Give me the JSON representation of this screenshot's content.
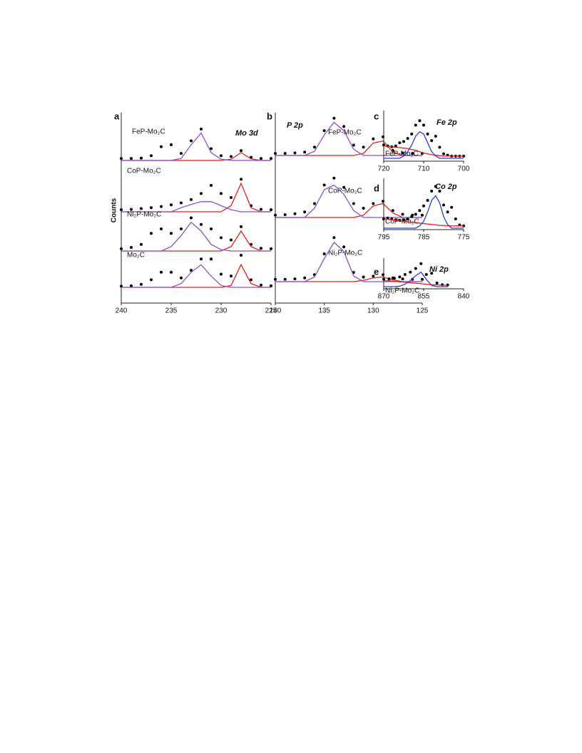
{
  "chart_data": [
    {
      "type": "line",
      "label": "a",
      "title": "Mo 3d",
      "ylabel": "Counts",
      "xlim": [
        240,
        225
      ],
      "ylim": [
        0,
        1
      ],
      "x": [
        240,
        239,
        238,
        237,
        236,
        235,
        234,
        233,
        232,
        231,
        230,
        229,
        228,
        227,
        226,
        225
      ],
      "series": [
        {
          "name": "FeP-Mo₂C",
          "color": "#000000",
          "values": [
            0.05,
            0.05,
            0.06,
            0.12,
            0.35,
            0.4,
            0.18,
            0.5,
            0.8,
            0.3,
            0.12,
            0.1,
            0.25,
            0.08,
            0.05,
            0.05
          ]
        },
        {
          "color": "#e0201b",
          "values": [
            0,
            0,
            0,
            0,
            0,
            0,
            0,
            0,
            0,
            0,
            0,
            0.03,
            0.2,
            0.04,
            0,
            0
          ]
        },
        {
          "color": "#8a4fcf",
          "values": [
            0,
            0,
            0,
            0,
            0,
            0,
            0.05,
            0.4,
            0.7,
            0.2,
            0.03,
            0,
            0,
            0,
            0,
            0
          ]
        }
      ]
    },
    {
      "type": "line",
      "xlim": [
        240,
        225
      ],
      "ylim": [
        0,
        1
      ],
      "x": [
        240,
        239,
        238,
        237,
        236,
        235,
        234,
        233,
        232,
        231,
        230,
        229,
        228,
        227,
        226,
        225
      ],
      "series": [
        {
          "name": "CoP-Mo₂C",
          "color": "#000000",
          "values": [
            0.05,
            0.06,
            0.08,
            0.1,
            0.13,
            0.17,
            0.22,
            0.3,
            0.45,
            0.65,
            0.45,
            0.35,
            0.8,
            0.15,
            0.06,
            0.05
          ]
        },
        {
          "color": "#e0201b",
          "values": [
            0,
            0,
            0,
            0,
            0,
            0,
            0,
            0,
            0,
            0,
            0,
            0.15,
            0.7,
            0.1,
            0,
            0
          ]
        },
        {
          "color": "#8a4fcf",
          "values": [
            0,
            0,
            0,
            0,
            0,
            0,
            0.1,
            0.18,
            0.25,
            0.25,
            0.15,
            0.05,
            0,
            0,
            0,
            0
          ]
        }
      ]
    },
    {
      "type": "line",
      "xlim": [
        240,
        225
      ],
      "ylim": [
        0,
        1
      ],
      "x": [
        240,
        239,
        238,
        237,
        236,
        235,
        234,
        233,
        232,
        231,
        230,
        229,
        228,
        227,
        226,
        225
      ],
      "series": [
        {
          "name": "Ni₂P-Mo₂C",
          "color": "#000000",
          "values": [
            0.05,
            0.08,
            0.15,
            0.4,
            0.5,
            0.4,
            0.5,
            0.75,
            0.6,
            0.5,
            0.3,
            0.25,
            0.55,
            0.15,
            0.06,
            0.05
          ]
        },
        {
          "color": "#e0201b",
          "values": [
            0,
            0,
            0,
            0,
            0,
            0,
            0,
            0,
            0,
            0,
            0,
            0.1,
            0.45,
            0.1,
            0,
            0
          ]
        },
        {
          "color": "#8a4fcf",
          "values": [
            0,
            0,
            0,
            0,
            0,
            0.1,
            0.35,
            0.65,
            0.45,
            0.15,
            0.03,
            0,
            0,
            0,
            0,
            0
          ]
        }
      ]
    },
    {
      "type": "line",
      "xlim": [
        240,
        225
      ],
      "ylim": [
        0,
        1
      ],
      "xticks": [
        240,
        235,
        230,
        225
      ],
      "x": [
        240,
        239,
        238,
        237,
        236,
        235,
        234,
        233,
        232,
        231,
        230,
        229,
        228,
        227,
        226,
        225
      ],
      "series": [
        {
          "name": "Mo₂C",
          "color": "#000000",
          "values": [
            0.03,
            0.04,
            0.08,
            0.2,
            0.4,
            0.4,
            0.25,
            0.45,
            0.75,
            0.75,
            0.35,
            0.3,
            0.85,
            0.2,
            0.06,
            0.04
          ]
        },
        {
          "color": "#e0201b",
          "values": [
            0,
            0,
            0,
            0,
            0,
            0,
            0,
            0,
            0,
            0,
            0,
            0.05,
            0.6,
            0.1,
            0,
            0
          ]
        },
        {
          "color": "#8a4fcf",
          "values": [
            0,
            0,
            0,
            0,
            0,
            0,
            0.1,
            0.4,
            0.6,
            0.3,
            0.05,
            0,
            0,
            0,
            0,
            0
          ]
        }
      ]
    },
    {
      "type": "line",
      "label": "b",
      "title": "P 2p",
      "xlim": [
        140,
        125
      ],
      "ylim": [
        0,
        1
      ],
      "x": [
        140,
        139,
        138,
        137,
        136,
        135,
        134,
        133,
        132,
        131,
        130,
        129,
        128,
        127,
        126,
        125
      ],
      "series": [
        {
          "name": "FeP-Mo₂C",
          "color": "#000000",
          "values": [
            0.05,
            0.05,
            0.06,
            0.08,
            0.2,
            0.6,
            0.9,
            0.7,
            0.25,
            0.2,
            0.4,
            0.45,
            0.12,
            0.06,
            0.05,
            0.05
          ]
        },
        {
          "color": "#e0201b",
          "values": [
            0,
            0,
            0,
            0,
            0,
            0,
            0,
            0,
            0,
            0.05,
            0.3,
            0.35,
            0.08,
            0,
            0,
            0
          ]
        },
        {
          "color": "#8a4fcf",
          "values": [
            0,
            0,
            0,
            0,
            0.1,
            0.5,
            0.8,
            0.6,
            0.15,
            0,
            0,
            0,
            0,
            0,
            0,
            0
          ]
        }
      ]
    },
    {
      "type": "line",
      "xlim": [
        140,
        125
      ],
      "ylim": [
        0,
        1
      ],
      "x": [
        140,
        139,
        138,
        137,
        136,
        135,
        134,
        133,
        132,
        131,
        130,
        129,
        128,
        127,
        126,
        125
      ],
      "series": [
        {
          "name": "CoP-Mo₂C",
          "color": "#000000",
          "values": [
            0.05,
            0.06,
            0.08,
            0.12,
            0.3,
            0.7,
            0.85,
            0.65,
            0.3,
            0.2,
            0.3,
            0.35,
            0.15,
            0.07,
            0.05,
            0.05
          ]
        },
        {
          "color": "#e0201b",
          "values": [
            0,
            0,
            0,
            0,
            0,
            0,
            0,
            0,
            0,
            0.05,
            0.25,
            0.3,
            0.1,
            0,
            0,
            0
          ]
        },
        {
          "color": "#8a4fcf",
          "values": [
            0,
            0,
            0,
            0,
            0.2,
            0.6,
            0.7,
            0.5,
            0.15,
            0,
            0,
            0,
            0,
            0,
            0,
            0
          ]
        }
      ]
    },
    {
      "type": "line",
      "xlim": [
        140,
        125
      ],
      "ylim": [
        0,
        1
      ],
      "xticks": [
        140,
        135,
        130,
        125
      ],
      "x": [
        140,
        139,
        138,
        137,
        136,
        135,
        134,
        133,
        132,
        131,
        130,
        129,
        128,
        127,
        126,
        125
      ],
      "series": [
        {
          "name": "Ni₂P-Mo₂C",
          "color": "#000000",
          "values": [
            0.05,
            0.05,
            0.06,
            0.08,
            0.15,
            0.6,
            0.95,
            0.75,
            0.2,
            0.1,
            0.12,
            0.15,
            0.08,
            0.06,
            0.05,
            0.05
          ]
        },
        {
          "color": "#e0201b",
          "values": [
            0,
            0,
            0,
            0,
            0,
            0,
            0,
            0,
            0,
            0.03,
            0.08,
            0.1,
            0.04,
            0,
            0,
            0
          ]
        },
        {
          "color": "#8a4fcf",
          "values": [
            0,
            0,
            0,
            0,
            0.1,
            0.5,
            0.85,
            0.65,
            0.12,
            0,
            0,
            0,
            0,
            0,
            0,
            0
          ]
        }
      ]
    },
    {
      "type": "line",
      "label": "c",
      "title": "Fe 2p",
      "xlim": [
        720,
        700
      ],
      "ylim": [
        0,
        1
      ],
      "xticks": [
        720,
        710,
        700
      ],
      "x": [
        720,
        719,
        718,
        717,
        716,
        715,
        714,
        713,
        712,
        711,
        710,
        709,
        708,
        707,
        706,
        705,
        704,
        703,
        702,
        701,
        700
      ],
      "series": [
        {
          "name": "FeP-Mo₂C",
          "color": "#000000",
          "values": [
            0.3,
            0.28,
            0.26,
            0.28,
            0.35,
            0.38,
            0.45,
            0.55,
            0.75,
            0.85,
            0.75,
            0.55,
            0.4,
            0.5,
            0.25,
            0.1,
            0.07,
            0.05,
            0.05,
            0.05,
            0.05
          ]
        },
        {
          "color": "#e0201b",
          "values": [
            0.28,
            0.27,
            0.26,
            0.25,
            0.24,
            0.23,
            0.22,
            0.2,
            0.18,
            0.15,
            0.12,
            0.1,
            0.08,
            0.07,
            0.06,
            0.05,
            0.05,
            0.05,
            0.05,
            0.05,
            0.05
          ]
        },
        {
          "color": "#2a3fd0",
          "values": [
            0,
            0,
            0,
            0,
            0,
            0.05,
            0.15,
            0.3,
            0.5,
            0.6,
            0.55,
            0.35,
            0.15,
            0.05,
            0,
            0,
            0,
            0,
            0,
            0,
            0
          ]
        }
      ]
    },
    {
      "type": "line",
      "label": "d",
      "title": "Co 2p",
      "xlim": [
        795,
        775
      ],
      "ylim": [
        0,
        1
      ],
      "xticks": [
        795,
        785,
        775
      ],
      "x": [
        795,
        794,
        793,
        792,
        791,
        790,
        789,
        788,
        787,
        786,
        785,
        784,
        783,
        782,
        781,
        780,
        779,
        778,
        777,
        776,
        775
      ],
      "series": [
        {
          "name": "CoP-Mo₂C",
          "color": "#000000",
          "values": [
            0.2,
            0.22,
            0.2,
            0.18,
            0.17,
            0.18,
            0.2,
            0.25,
            0.3,
            0.38,
            0.48,
            0.6,
            0.8,
            0.9,
            0.8,
            0.5,
            0.35,
            0.45,
            0.2,
            0.07,
            0.05
          ]
        },
        {
          "color": "#e0201b",
          "values": [
            0.2,
            0.19,
            0.18,
            0.17,
            0.16,
            0.15,
            0.14,
            0.13,
            0.12,
            0.11,
            0.1,
            0.09,
            0.08,
            0.07,
            0.06,
            0.06,
            0.05,
            0.05,
            0.05,
            0.05,
            0.05
          ]
        },
        {
          "color": "#2a3fd0",
          "values": [
            0,
            0,
            0,
            0,
            0,
            0,
            0,
            0,
            0,
            0.05,
            0.15,
            0.35,
            0.6,
            0.7,
            0.55,
            0.25,
            0.08,
            0,
            0,
            0,
            0
          ]
        }
      ]
    },
    {
      "type": "line",
      "label": "e",
      "title": "Ni 2p",
      "xlim": [
        870,
        840
      ],
      "ylim": [
        0,
        1
      ],
      "xticks": [
        870,
        855,
        840
      ],
      "x": [
        870,
        868,
        866,
        864,
        862,
        860,
        858,
        856,
        854,
        852,
        850,
        848,
        846,
        844,
        842,
        840
      ],
      "series": [
        {
          "name": "Ni₂P-Mo₂C",
          "color": "#000000",
          "values": [
            0.3,
            0.32,
            0.35,
            0.4,
            0.5,
            0.6,
            0.75,
            0.95,
            0.5,
            0.55,
            0.15,
            0.08,
            0.07,
            null,
            null,
            null
          ]
        },
        {
          "color": "#e0201b",
          "values": [
            0.25,
            0.24,
            0.22,
            0.2,
            0.18,
            0.16,
            0.14,
            0.12,
            0.1,
            0.08,
            0.07,
            0.06,
            0.06,
            null,
            null,
            null
          ]
        },
        {
          "color": "#2a3fd0",
          "values": [
            0,
            0,
            0,
            0.02,
            0.1,
            0.25,
            0.45,
            0.6,
            0.3,
            0.05,
            0,
            0,
            0,
            null,
            null,
            null
          ]
        }
      ]
    }
  ]
}
